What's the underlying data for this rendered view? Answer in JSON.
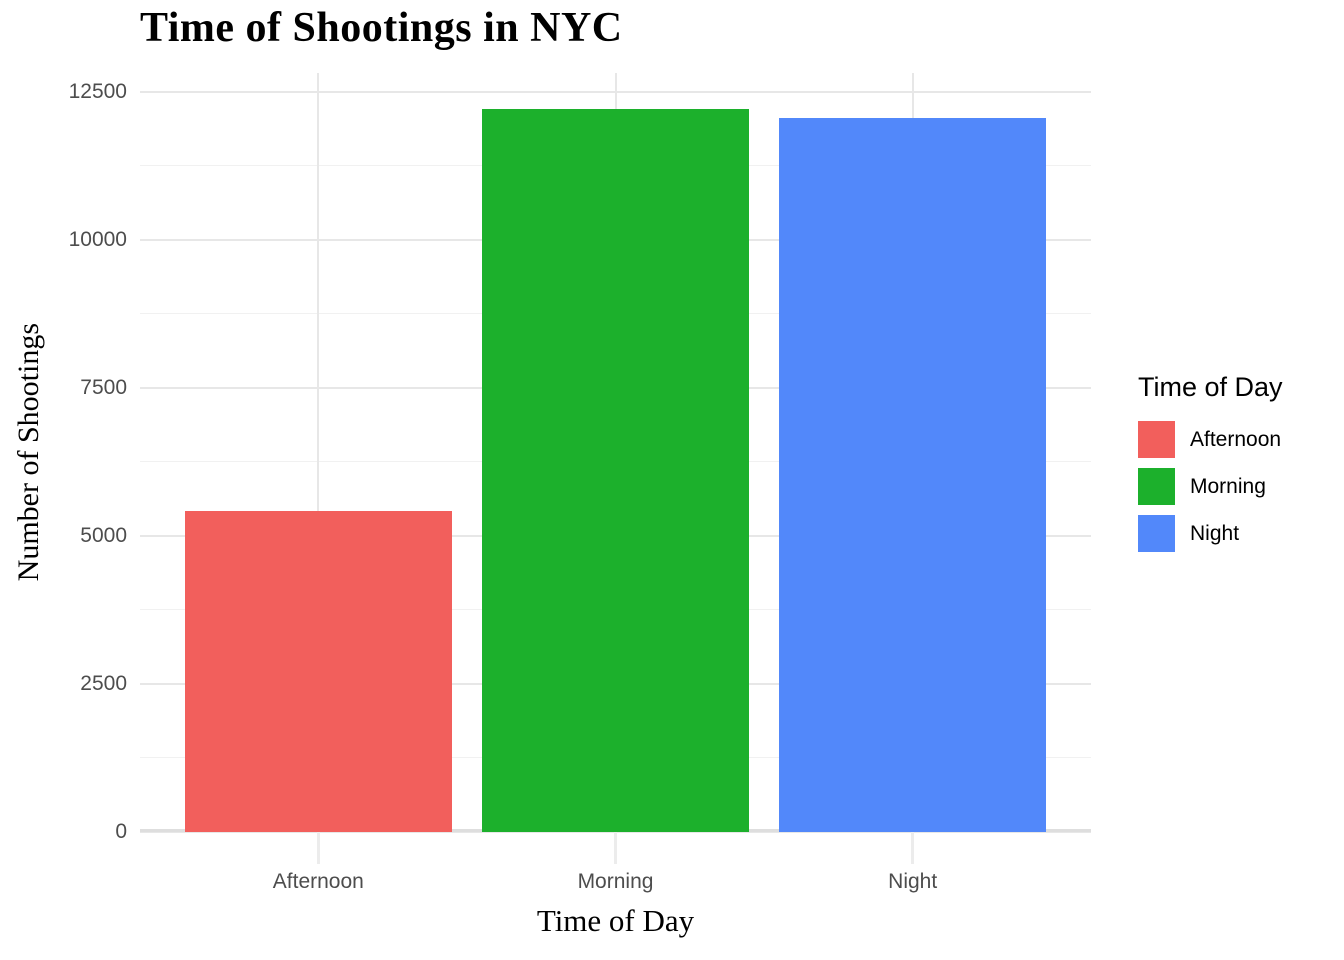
{
  "title": "Time of Shootings in NYC",
  "chart_data": {
    "type": "bar",
    "title": "Time of Shootings in NYC",
    "xlabel": "Time of Day",
    "ylabel": "Number of Shootings",
    "categories": [
      "Afternoon",
      "Morning",
      "Night"
    ],
    "values": [
      5425,
      12210,
      12060
    ],
    "bar_colors": [
      "#F25F5C",
      "#1CB02C",
      "#5288FA"
    ],
    "ylim": [
      0,
      12820
    ],
    "y_major_ticks": [
      0,
      2500,
      5000,
      7500,
      10000,
      12500
    ],
    "y_minor_ticks": [
      1250,
      3750,
      6250,
      8750,
      11250
    ],
    "grid": true,
    "legend": {
      "title": "Time of Day",
      "position": "right",
      "entries": [
        {
          "label": "Afternoon",
          "color": "#F25F5C"
        },
        {
          "label": "Morning",
          "color": "#1CB02C"
        },
        {
          "label": "Night",
          "color": "#5288FA"
        }
      ]
    }
  },
  "styles": {
    "background": "#FFFFFF",
    "grid_major_color": "#E7E7E7",
    "grid_minor_color": "#F1F1F1",
    "axis_line_color": "#DEDEDE",
    "tick_mark_color": "#ECECEC",
    "tick_text_color": "#4D4D4D",
    "title_text_color": "#000000"
  }
}
